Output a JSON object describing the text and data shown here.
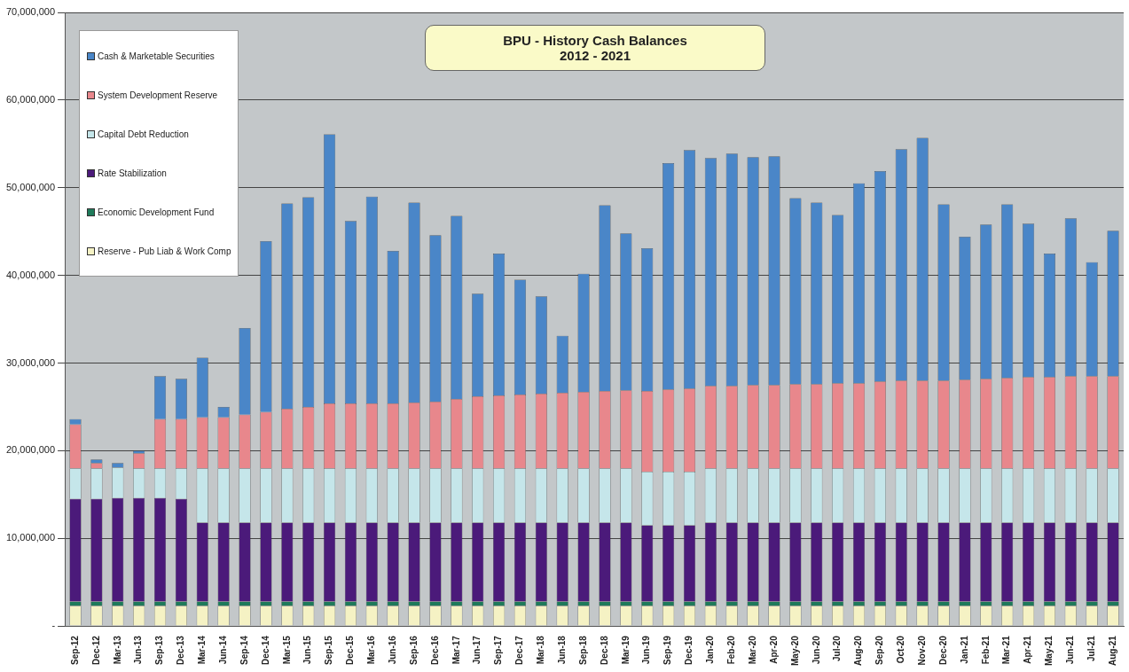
{
  "chart_data": {
    "type": "bar",
    "title": "BPU - History Cash Balances",
    "subtitle": "2012 - 2021",
    "stacked": true,
    "grid": "y",
    "legend": "top left",
    "categories": [
      "Sep-12",
      "Dec-12",
      "Mar-13",
      "Jun-13",
      "Sep-13",
      "Dec-13",
      "Mar-14",
      "Jun-14",
      "Sep-14",
      "Dec-14",
      "Mar-15",
      "Jun-15",
      "Sep-15",
      "Dec-15",
      "Mar-16",
      "Jun-16",
      "Sep-16",
      "Dec-16",
      "Mar-17",
      "Jun-17",
      "Sep-17",
      "Dec-17",
      "Mar-18",
      "Jun-18",
      "Sep-18",
      "Dec-18",
      "Mar-19",
      "Jun-19",
      "Sep-19",
      "Dec-19",
      "Jan-20",
      "Feb-20",
      "Mar-20",
      "Apr-20",
      "May-20",
      "Jun-20",
      "Jul-20",
      "Aug-20",
      "Sep-20",
      "Oct-20",
      "Nov-20",
      "Dec-20",
      "Jan-21",
      "Feb-21",
      "Mar-21",
      "Apr-21",
      "May-21",
      "Jun-21",
      "Jul-21",
      "Aug-21"
    ],
    "ylim": [
      0,
      70000000
    ],
    "yticks": [
      {
        "value": 0,
        "label": "-"
      },
      {
        "value": 10000000,
        "label": "10,000,000"
      },
      {
        "value": 20000000,
        "label": "20,000,000"
      },
      {
        "value": 30000000,
        "label": "30,000,000"
      },
      {
        "value": 40000000,
        "label": "40,000,000"
      },
      {
        "value": 50000000,
        "label": "50,000,000"
      },
      {
        "value": 60000000,
        "label": "60,000,000"
      },
      {
        "value": 70000000,
        "label": "70,000,000"
      }
    ],
    "series": [
      {
        "name": "Reserve - Pub Liab & Work Comp",
        "color": "#f5f2c4",
        "values": [
          2300000,
          2300000,
          2300000,
          2300000,
          2300000,
          2300000,
          2300000,
          2300000,
          2300000,
          2300000,
          2300000,
          2300000,
          2300000,
          2300000,
          2300000,
          2300000,
          2300000,
          2300000,
          2300000,
          2300000,
          2300000,
          2300000,
          2300000,
          2300000,
          2300000,
          2300000,
          2300000,
          2300000,
          2300000,
          2300000,
          2300000,
          2300000,
          2300000,
          2300000,
          2300000,
          2300000,
          2300000,
          2300000,
          2300000,
          2300000,
          2300000,
          2300000,
          2300000,
          2300000,
          2300000,
          2300000,
          2300000,
          2300000,
          2300000,
          2300000
        ]
      },
      {
        "name": "Economic Development Fund",
        "color": "#1e7a5a",
        "values": [
          500000,
          500000,
          500000,
          500000,
          500000,
          500000,
          500000,
          500000,
          500000,
          500000,
          500000,
          500000,
          500000,
          500000,
          500000,
          500000,
          500000,
          500000,
          500000,
          500000,
          500000,
          500000,
          500000,
          500000,
          500000,
          500000,
          500000,
          500000,
          500000,
          500000,
          500000,
          500000,
          500000,
          500000,
          500000,
          500000,
          500000,
          500000,
          500000,
          500000,
          500000,
          500000,
          500000,
          500000,
          500000,
          500000,
          500000,
          500000,
          500000,
          500000
        ]
      },
      {
        "name": "Rate Stabilization",
        "color": "#4b1a7a",
        "values": [
          11700000,
          11700000,
          11800000,
          11800000,
          11800000,
          11700000,
          9000000,
          9000000,
          9000000,
          9000000,
          9000000,
          9000000,
          9000000,
          9000000,
          9000000,
          9000000,
          9000000,
          9000000,
          9000000,
          9000000,
          9000000,
          9000000,
          9000000,
          9000000,
          9000000,
          9000000,
          9000000,
          8700000,
          8700000,
          8700000,
          9000000,
          9000000,
          9000000,
          9000000,
          9000000,
          9000000,
          9000000,
          9000000,
          9000000,
          9000000,
          9000000,
          9000000,
          9000000,
          9000000,
          9000000,
          9000000,
          9000000,
          9000000,
          9000000,
          9000000
        ]
      },
      {
        "name": "Capital Debt Reduction",
        "color": "#c5e6ea",
        "values": [
          3500000,
          3500000,
          3500000,
          3400000,
          3400000,
          3500000,
          6200000,
          6200000,
          6200000,
          6200000,
          6200000,
          6200000,
          6200000,
          6200000,
          6200000,
          6200000,
          6200000,
          6200000,
          6200000,
          6200000,
          6200000,
          6200000,
          6200000,
          6200000,
          6200000,
          6200000,
          6200000,
          6100000,
          6100000,
          6100000,
          6200000,
          6200000,
          6200000,
          6200000,
          6200000,
          6200000,
          6200000,
          6200000,
          6200000,
          6200000,
          6200000,
          6200000,
          6200000,
          6200000,
          6200000,
          6200000,
          6200000,
          6200000,
          6200000,
          6200000
        ]
      },
      {
        "name": "System Development Reserve",
        "color": "#e8878c",
        "values": [
          5000000,
          600000,
          null,
          1700000,
          5600000,
          5600000,
          5800000,
          5800000,
          6100000,
          6400000,
          6800000,
          7000000,
          7400000,
          7400000,
          7400000,
          7400000,
          7500000,
          7600000,
          7900000,
          8200000,
          8300000,
          8400000,
          8500000,
          8600000,
          8700000,
          8800000,
          8900000,
          9200000,
          9400000,
          9500000,
          9400000,
          9400000,
          9500000,
          9500000,
          9600000,
          9600000,
          9700000,
          9700000,
          9900000,
          10000000,
          10000000,
          10000000,
          10100000,
          10200000,
          10300000,
          10400000,
          10400000,
          10500000,
          10500000,
          10500000
        ]
      },
      {
        "name": "Cash & Marketable Securities",
        "color": "#4a86c8",
        "values": [
          600000,
          400000,
          500000,
          300000,
          4900000,
          4600000,
          6800000,
          1200000,
          9900000,
          19500000,
          23400000,
          23900000,
          30700000,
          20800000,
          23600000,
          17400000,
          22800000,
          19000000,
          20900000,
          11700000,
          16200000,
          13100000,
          11100000,
          6500000,
          13500000,
          21200000,
          17900000,
          16300000,
          25800000,
          27200000,
          26000000,
          26500000,
          26000000,
          26100000,
          21200000,
          20700000,
          19200000,
          22800000,
          24000000,
          26400000,
          27700000,
          20100000,
          16300000,
          17600000,
          19800000,
          17500000,
          14100000,
          18000000,
          13000000,
          16600000
        ]
      }
    ]
  }
}
